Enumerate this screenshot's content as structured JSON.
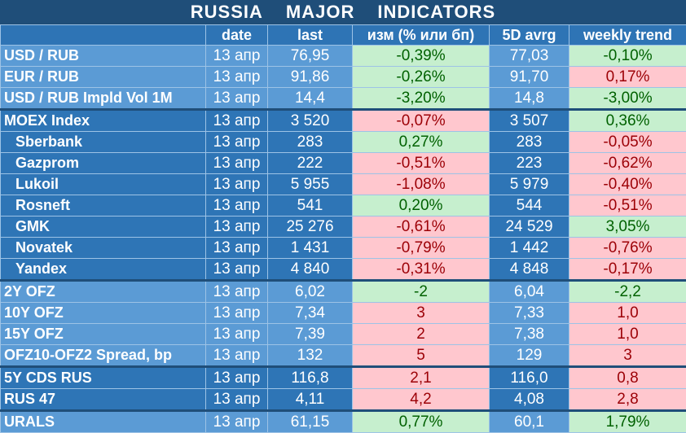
{
  "title": {
    "words": [
      "RUSSIA",
      "MAJOR",
      "INDICATORS"
    ]
  },
  "headers": [
    "",
    "date",
    "last",
    "изм (% или бп)",
    "5D avrg",
    "weekly trend"
  ],
  "colors": {
    "header_bg": "#1F4E79",
    "positive_bg": "#C6EFCE",
    "positive_fg": "#006100",
    "negative_bg": "#FFC7CE",
    "negative_fg": "#9C0006"
  },
  "rows": [
    {
      "name": "USD / RUB",
      "date": "13 апр",
      "last": "76,95",
      "chg": "-0,39%",
      "chg_sign": "pos",
      "avg": "77,03",
      "week": "-0,10%",
      "week_sign": "pos",
      "group": "g1",
      "indent": false
    },
    {
      "name": "EUR / RUB",
      "date": "13 апр",
      "last": "91,86",
      "chg": "-0,26%",
      "chg_sign": "pos",
      "avg": "91,70",
      "week": "0,17%",
      "week_sign": "neg",
      "group": "g1",
      "indent": false
    },
    {
      "name": "USD / RUB Impld Vol 1M",
      "date": "13 апр",
      "last": "14,4",
      "chg": "-3,20%",
      "chg_sign": "pos",
      "avg": "14,8",
      "week": "-3,00%",
      "week_sign": "pos",
      "group": "g1",
      "indent": false
    },
    {
      "name": "MOEX Index",
      "date": "13 апр",
      "last": "3 520",
      "chg": "-0,07%",
      "chg_sign": "neg",
      "avg": "3 507",
      "week": "0,36%",
      "week_sign": "pos",
      "group": "g2",
      "indent": false
    },
    {
      "name": "Sberbank",
      "date": "13 апр",
      "last": "283",
      "chg": "0,27%",
      "chg_sign": "pos",
      "avg": "283",
      "week": "-0,05%",
      "week_sign": "neg",
      "group": "g2",
      "indent": true
    },
    {
      "name": "Gazprom",
      "date": "13 апр",
      "last": "222",
      "chg": "-0,51%",
      "chg_sign": "neg",
      "avg": "223",
      "week": "-0,62%",
      "week_sign": "neg",
      "group": "g2",
      "indent": true
    },
    {
      "name": "Lukoil",
      "date": "13 апр",
      "last": "5 955",
      "chg": "-1,08%",
      "chg_sign": "neg",
      "avg": "5 979",
      "week": "-0,40%",
      "week_sign": "neg",
      "group": "g2",
      "indent": true
    },
    {
      "name": "Rosneft",
      "date": "13 апр",
      "last": "541",
      "chg": "0,20%",
      "chg_sign": "pos",
      "avg": "544",
      "week": "-0,51%",
      "week_sign": "neg",
      "group": "g2",
      "indent": true
    },
    {
      "name": "GMK",
      "date": "13 апр",
      "last": "25 276",
      "chg": "-0,61%",
      "chg_sign": "neg",
      "avg": "24 529",
      "week": "3,05%",
      "week_sign": "pos",
      "group": "g2",
      "indent": true
    },
    {
      "name": "Novatek",
      "date": "13 апр",
      "last": "1 431",
      "chg": "-0,79%",
      "chg_sign": "neg",
      "avg": "1 442",
      "week": "-0,76%",
      "week_sign": "neg",
      "group": "g2",
      "indent": true
    },
    {
      "name": "Yandex",
      "date": "13 апр",
      "last": "4 840",
      "chg": "-0,31%",
      "chg_sign": "neg",
      "avg": "4 848",
      "week": "-0,17%",
      "week_sign": "neg",
      "group": "g2",
      "indent": true
    },
    {
      "name": "2Y OFZ",
      "date": "13 апр",
      "last": "6,02",
      "chg": "-2",
      "chg_sign": "pos",
      "avg": "6,04",
      "week": "-2,2",
      "week_sign": "pos",
      "group": "g3",
      "indent": false
    },
    {
      "name": "10Y OFZ",
      "date": "13 апр",
      "last": "7,34",
      "chg": "3",
      "chg_sign": "neg",
      "avg": "7,33",
      "week": "1,0",
      "week_sign": "neg",
      "group": "g3",
      "indent": false
    },
    {
      "name": "15Y OFZ",
      "date": "13 апр",
      "last": "7,39",
      "chg": "2",
      "chg_sign": "neg",
      "avg": "7,38",
      "week": "1,0",
      "week_sign": "neg",
      "group": "g3",
      "indent": false
    },
    {
      "name": "OFZ10-OFZ2 Spread, bp",
      "date": "13 апр",
      "last": "132",
      "chg": "5",
      "chg_sign": "neg",
      "avg": "129",
      "week": "3",
      "week_sign": "neg",
      "group": "g3",
      "indent": false
    },
    {
      "name": "5Y CDS RUS",
      "date": "13 апр",
      "last": "116,8",
      "chg": "2,1",
      "chg_sign": "neg",
      "avg": "116,0",
      "week": "0,8",
      "week_sign": "neg",
      "group": "g4",
      "indent": false
    },
    {
      "name": "RUS 47",
      "date": "13 апр",
      "last": "4,11",
      "chg": "4,2",
      "chg_sign": "neg",
      "avg": "4,08",
      "week": "2,8",
      "week_sign": "neg",
      "group": "g4",
      "indent": false
    },
    {
      "name": "URALS",
      "date": "13 апр",
      "last": "61,15",
      "chg": "0,77%",
      "chg_sign": "pos",
      "avg": "60,1",
      "week": "1,79%",
      "week_sign": "pos",
      "group": "g5",
      "indent": false
    }
  ]
}
